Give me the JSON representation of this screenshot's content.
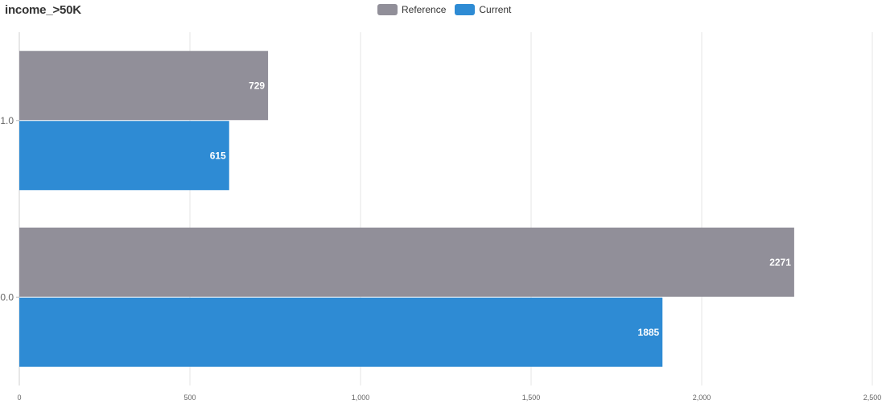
{
  "chart_data": {
    "type": "bar",
    "orientation": "horizontal",
    "title": "income_>50K",
    "xlabel": "",
    "ylabel": "",
    "categories": [
      "1.0",
      "0.0"
    ],
    "series": [
      {
        "name": "Reference",
        "values": [
          729,
          2271
        ],
        "color": "#918F99"
      },
      {
        "name": "Current",
        "values": [
          615,
          1885
        ],
        "color": "#2E8BD4"
      }
    ],
    "xlim": [
      0,
      2500
    ],
    "x_ticks": [
      0,
      500,
      1000,
      1500,
      2000,
      2500
    ],
    "x_tick_labels": [
      "0",
      "500",
      "1,000",
      "1,500",
      "2,000",
      "2,500"
    ],
    "grid": true,
    "legend_position": "top-center",
    "data_labels": true
  }
}
